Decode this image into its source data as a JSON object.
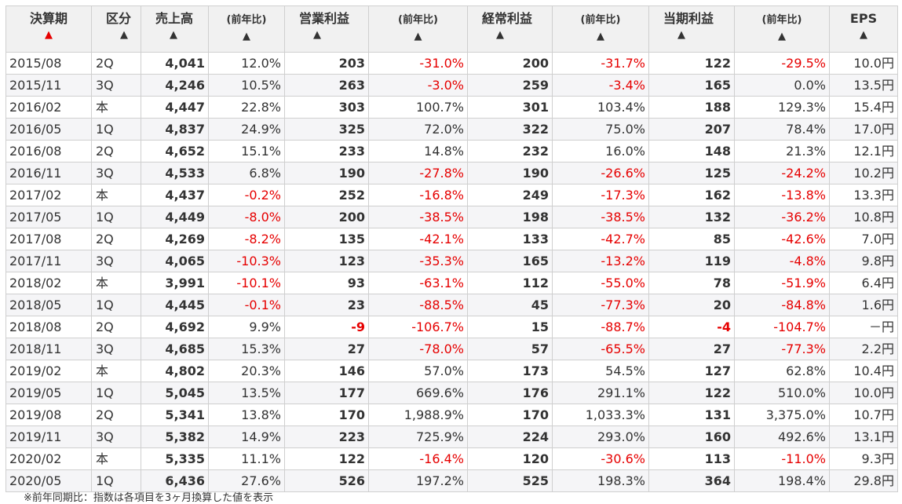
{
  "headers": [
    {
      "label": "決算期",
      "sort": "▲",
      "active": true
    },
    {
      "label": "区分",
      "sort": "▲",
      "active": false
    },
    {
      "label": "売上高",
      "sort": "▲",
      "active": false
    },
    {
      "label": "(前年比)",
      "sort": "▲",
      "active": false
    },
    {
      "label": "営業利益",
      "sort": "▲",
      "active": false
    },
    {
      "label": "(前年比)",
      "sort": "▲",
      "active": false
    },
    {
      "label": "経常利益",
      "sort": "▲",
      "active": false
    },
    {
      "label": "(前年比)",
      "sort": "▲",
      "active": false
    },
    {
      "label": "当期利益",
      "sort": "▲",
      "active": false
    },
    {
      "label": "(前年比)",
      "sort": "▲",
      "active": false
    },
    {
      "label": "EPS",
      "sort": "▲",
      "active": false
    }
  ],
  "rows": [
    [
      "2015/08",
      "2Q",
      "4,041",
      "12.0%",
      "203",
      "-31.0%",
      "200",
      "-31.7%",
      "122",
      "-29.5%",
      "10.0円"
    ],
    [
      "2015/11",
      "3Q",
      "4,246",
      "10.5%",
      "263",
      "-3.0%",
      "259",
      "-3.4%",
      "165",
      "0.0%",
      "13.5円"
    ],
    [
      "2016/02",
      "本",
      "4,447",
      "22.8%",
      "303",
      "100.7%",
      "301",
      "103.4%",
      "188",
      "129.3%",
      "15.4円"
    ],
    [
      "2016/05",
      "1Q",
      "4,837",
      "24.9%",
      "325",
      "72.0%",
      "322",
      "75.0%",
      "207",
      "78.4%",
      "17.0円"
    ],
    [
      "2016/08",
      "2Q",
      "4,652",
      "15.1%",
      "233",
      "14.8%",
      "232",
      "16.0%",
      "148",
      "21.3%",
      "12.1円"
    ],
    [
      "2016/11",
      "3Q",
      "4,533",
      "6.8%",
      "190",
      "-27.8%",
      "190",
      "-26.6%",
      "125",
      "-24.2%",
      "10.2円"
    ],
    [
      "2017/02",
      "本",
      "4,437",
      "-0.2%",
      "252",
      "-16.8%",
      "249",
      "-17.3%",
      "162",
      "-13.8%",
      "13.3円"
    ],
    [
      "2017/05",
      "1Q",
      "4,449",
      "-8.0%",
      "200",
      "-38.5%",
      "198",
      "-38.5%",
      "132",
      "-36.2%",
      "10.8円"
    ],
    [
      "2017/08",
      "2Q",
      "4,269",
      "-8.2%",
      "135",
      "-42.1%",
      "133",
      "-42.7%",
      "85",
      "-42.6%",
      "7.0円"
    ],
    [
      "2017/11",
      "3Q",
      "4,065",
      "-10.3%",
      "123",
      "-35.3%",
      "165",
      "-13.2%",
      "119",
      "-4.8%",
      "9.8円"
    ],
    [
      "2018/02",
      "本",
      "3,991",
      "-10.1%",
      "93",
      "-63.1%",
      "112",
      "-55.0%",
      "78",
      "-51.9%",
      "6.4円"
    ],
    [
      "2018/05",
      "1Q",
      "4,445",
      "-0.1%",
      "23",
      "-88.5%",
      "45",
      "-77.3%",
      "20",
      "-84.8%",
      "1.6円"
    ],
    [
      "2018/08",
      "2Q",
      "4,692",
      "9.9%",
      "-9",
      "-106.7%",
      "15",
      "-88.7%",
      "-4",
      "-104.7%",
      "－円"
    ],
    [
      "2018/11",
      "3Q",
      "4,685",
      "15.3%",
      "27",
      "-78.0%",
      "57",
      "-65.5%",
      "27",
      "-77.3%",
      "2.2円"
    ],
    [
      "2019/02",
      "本",
      "4,802",
      "20.3%",
      "146",
      "57.0%",
      "173",
      "54.5%",
      "127",
      "62.8%",
      "10.4円"
    ],
    [
      "2019/05",
      "1Q",
      "5,045",
      "13.5%",
      "177",
      "669.6%",
      "176",
      "291.1%",
      "122",
      "510.0%",
      "10.0円"
    ],
    [
      "2019/08",
      "2Q",
      "5,341",
      "13.8%",
      "170",
      "1,988.9%",
      "170",
      "1,033.3%",
      "131",
      "3,375.0%",
      "10.7円"
    ],
    [
      "2019/11",
      "3Q",
      "5,382",
      "14.9%",
      "223",
      "725.9%",
      "224",
      "293.0%",
      "160",
      "492.6%",
      "13.1円"
    ],
    [
      "2020/02",
      "本",
      "5,335",
      "11.1%",
      "122",
      "-16.4%",
      "120",
      "-30.6%",
      "113",
      "-11.0%",
      "9.3円"
    ],
    [
      "2020/05",
      "1Q",
      "6,436",
      "27.6%",
      "526",
      "197.2%",
      "525",
      "198.3%",
      "364",
      "198.4%",
      "29.8円"
    ]
  ],
  "footnote": "※前年同期比：指数は各項目を3ヶ月換算した値を表示",
  "colors": {
    "negative": "#e60000",
    "header_bg": "#f1f1f1",
    "stripe": "#f5f5f7",
    "border": "#cfcfcf"
  }
}
